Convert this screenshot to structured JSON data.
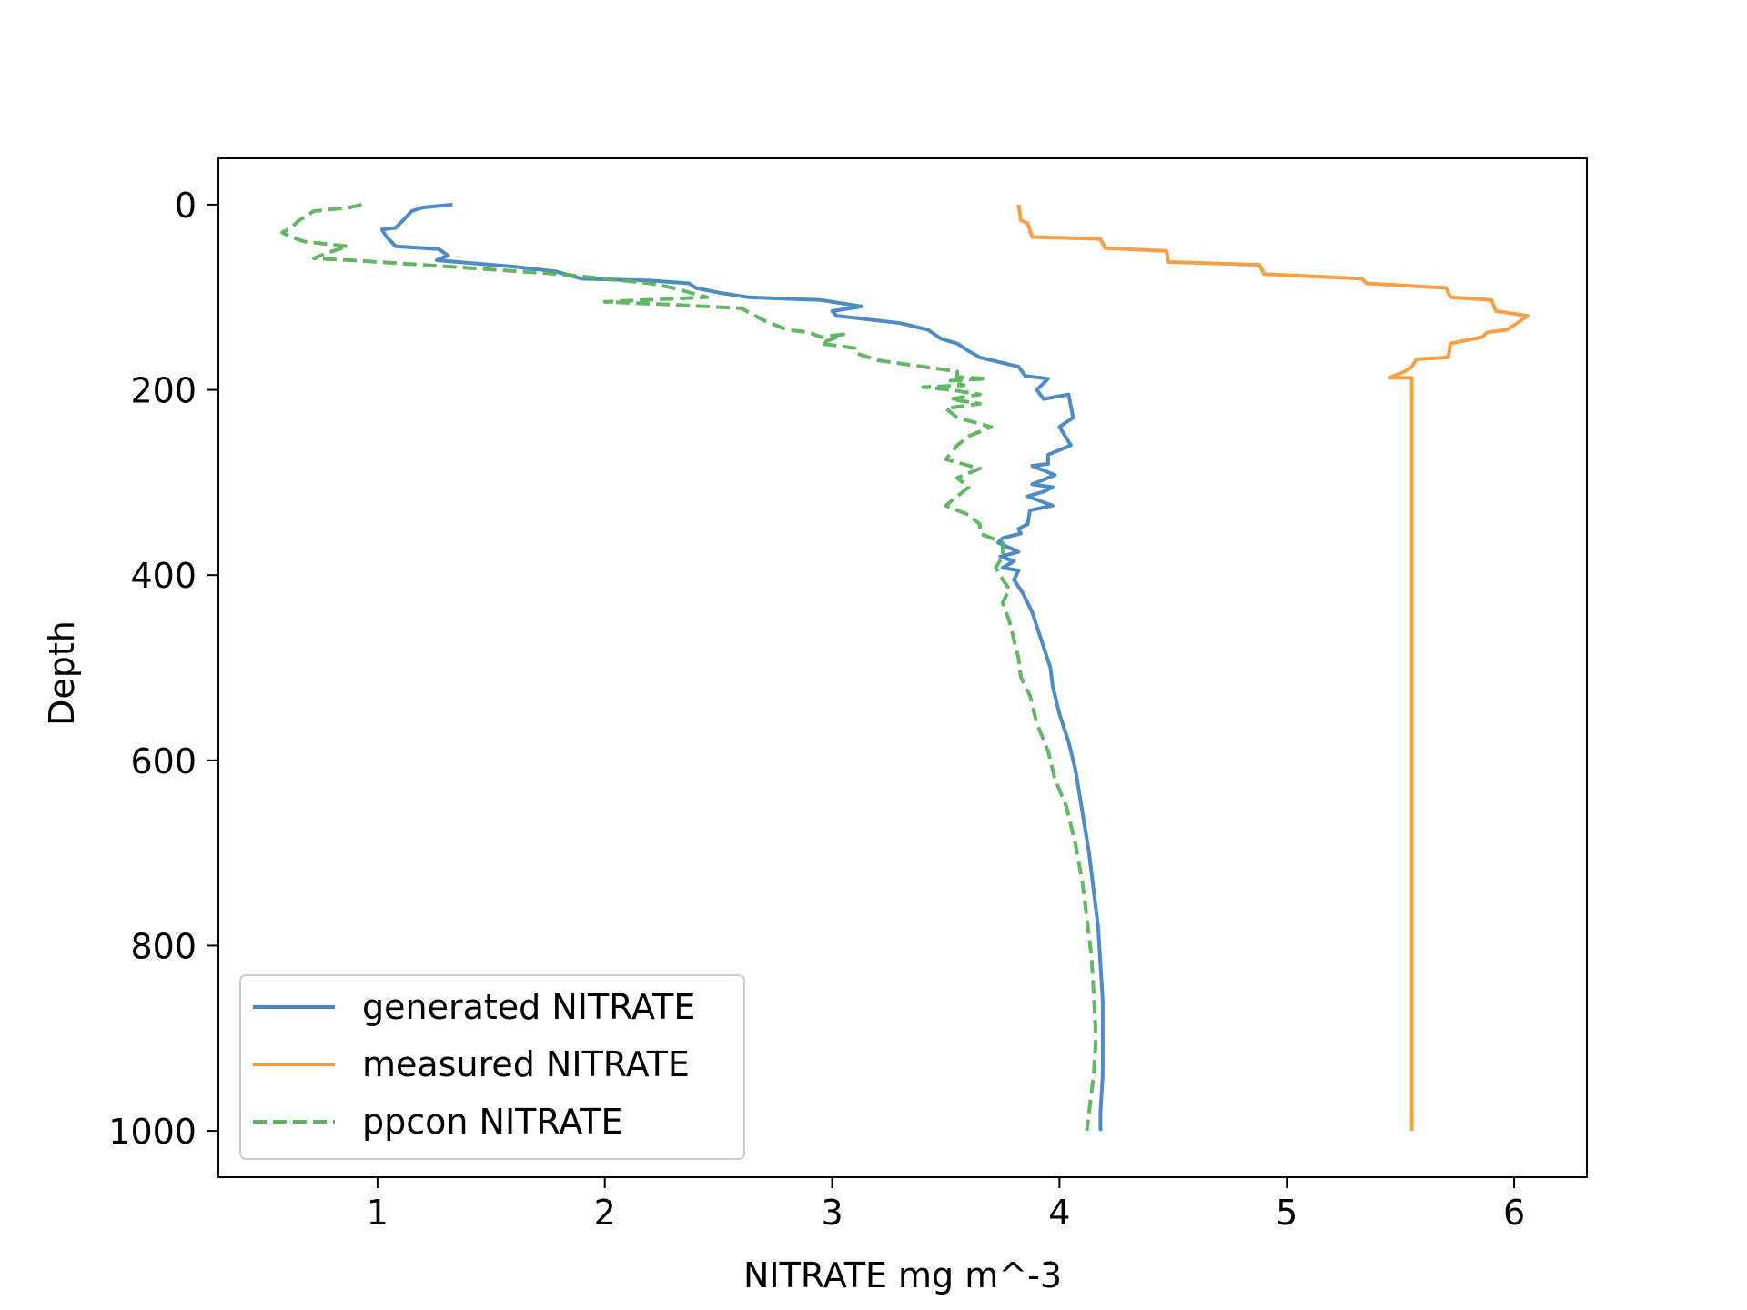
{
  "chart_data": {
    "type": "line",
    "title": "",
    "xlabel": "NITRATE mg m^-3",
    "ylabel": "Depth",
    "xlim": [
      0.3,
      6.32
    ],
    "ylim": [
      1050,
      -50
    ],
    "y_inverted": true,
    "x_ticks": [
      1,
      2,
      3,
      4,
      5,
      6
    ],
    "y_ticks": [
      0,
      200,
      400,
      600,
      800,
      1000
    ],
    "legend_position": "lower-left",
    "series": [
      {
        "name": "generated NITRATE",
        "color": "#4385c3",
        "style": "solid",
        "points": [
          [
            1.33,
            0
          ],
          [
            1.2,
            3
          ],
          [
            1.15,
            7
          ],
          [
            1.12,
            15
          ],
          [
            1.08,
            25
          ],
          [
            1.02,
            27
          ],
          [
            1.04,
            35
          ],
          [
            1.08,
            45
          ],
          [
            1.27,
            48
          ],
          [
            1.31,
            55
          ],
          [
            1.26,
            60
          ],
          [
            1.6,
            67
          ],
          [
            1.78,
            72
          ],
          [
            1.9,
            80
          ],
          [
            2.2,
            82
          ],
          [
            2.37,
            85
          ],
          [
            2.4,
            90
          ],
          [
            2.5,
            95
          ],
          [
            2.63,
            100
          ],
          [
            2.95,
            103
          ],
          [
            3.13,
            110
          ],
          [
            3.0,
            115
          ],
          [
            3.02,
            120
          ],
          [
            3.3,
            128
          ],
          [
            3.42,
            135
          ],
          [
            3.48,
            145
          ],
          [
            3.55,
            150
          ],
          [
            3.6,
            158
          ],
          [
            3.65,
            165
          ],
          [
            3.82,
            175
          ],
          [
            3.85,
            185
          ],
          [
            3.95,
            188
          ],
          [
            3.9,
            200
          ],
          [
            3.93,
            210
          ],
          [
            4.04,
            205
          ],
          [
            4.06,
            230
          ],
          [
            4.0,
            240
          ],
          [
            4.05,
            260
          ],
          [
            3.95,
            270
          ],
          [
            3.95,
            280
          ],
          [
            3.88,
            282
          ],
          [
            3.98,
            292
          ],
          [
            3.88,
            302
          ],
          [
            3.97,
            305
          ],
          [
            3.93,
            310
          ],
          [
            3.86,
            315
          ],
          [
            3.97,
            325
          ],
          [
            3.87,
            330
          ],
          [
            3.86,
            345
          ],
          [
            3.82,
            350
          ],
          [
            3.83,
            355
          ],
          [
            3.75,
            360
          ],
          [
            3.73,
            365
          ],
          [
            3.82,
            375
          ],
          [
            3.74,
            380
          ],
          [
            3.8,
            385
          ],
          [
            3.75,
            392
          ],
          [
            3.82,
            395
          ],
          [
            3.8,
            405
          ],
          [
            3.84,
            420
          ],
          [
            3.88,
            440
          ],
          [
            3.92,
            470
          ],
          [
            3.96,
            500
          ],
          [
            3.97,
            520
          ],
          [
            4.0,
            550
          ],
          [
            4.04,
            580
          ],
          [
            4.07,
            610
          ],
          [
            4.09,
            640
          ],
          [
            4.11,
            670
          ],
          [
            4.13,
            700
          ],
          [
            4.15,
            740
          ],
          [
            4.17,
            780
          ],
          [
            4.18,
            820
          ],
          [
            4.19,
            860
          ],
          [
            4.19,
            900
          ],
          [
            4.19,
            940
          ],
          [
            4.18,
            980
          ],
          [
            4.18,
            1000
          ]
        ]
      },
      {
        "name": "measured NITRATE",
        "color": "#f89a3c",
        "style": "solid",
        "points": [
          [
            3.82,
            0
          ],
          [
            3.83,
            17
          ],
          [
            3.86,
            20
          ],
          [
            3.88,
            35
          ],
          [
            4.18,
            37
          ],
          [
            4.2,
            47
          ],
          [
            4.47,
            50
          ],
          [
            4.48,
            62
          ],
          [
            4.88,
            65
          ],
          [
            4.9,
            75
          ],
          [
            5.33,
            80
          ],
          [
            5.35,
            85
          ],
          [
            5.7,
            90
          ],
          [
            5.72,
            100
          ],
          [
            5.9,
            103
          ],
          [
            5.92,
            115
          ],
          [
            6.06,
            120
          ],
          [
            5.97,
            135
          ],
          [
            5.88,
            138
          ],
          [
            5.86,
            143
          ],
          [
            5.72,
            150
          ],
          [
            5.71,
            165
          ],
          [
            5.57,
            167
          ],
          [
            5.55,
            175
          ],
          [
            5.52,
            180
          ],
          [
            5.45,
            187
          ],
          [
            5.55,
            187
          ],
          [
            5.55,
            1000
          ]
        ]
      },
      {
        "name": "ppcon NITRATE",
        "color": "#57b45a",
        "style": "dashed",
        "points": [
          [
            0.93,
            0
          ],
          [
            0.88,
            3
          ],
          [
            0.72,
            7
          ],
          [
            0.65,
            18
          ],
          [
            0.62,
            25
          ],
          [
            0.58,
            30
          ],
          [
            0.62,
            35
          ],
          [
            0.68,
            40
          ],
          [
            0.87,
            45
          ],
          [
            0.78,
            52
          ],
          [
            0.72,
            58
          ],
          [
            0.88,
            60
          ],
          [
            1.2,
            65
          ],
          [
            1.5,
            70
          ],
          [
            1.8,
            75
          ],
          [
            2.0,
            80
          ],
          [
            2.2,
            85
          ],
          [
            2.3,
            90
          ],
          [
            2.45,
            100
          ],
          [
            2.0,
            105
          ],
          [
            2.3,
            108
          ],
          [
            2.6,
            112
          ],
          [
            2.7,
            125
          ],
          [
            2.75,
            130
          ],
          [
            2.8,
            135
          ],
          [
            2.9,
            138
          ],
          [
            2.95,
            143
          ],
          [
            3.05,
            140
          ],
          [
            2.95,
            150
          ],
          [
            3.1,
            155
          ],
          [
            3.1,
            160
          ],
          [
            3.2,
            168
          ],
          [
            3.4,
            175
          ],
          [
            3.55,
            180
          ],
          [
            3.55,
            186
          ],
          [
            3.68,
            188
          ],
          [
            3.52,
            190
          ],
          [
            3.58,
            195
          ],
          [
            3.4,
            197
          ],
          [
            3.52,
            200
          ],
          [
            3.65,
            205
          ],
          [
            3.52,
            210
          ],
          [
            3.65,
            215
          ],
          [
            3.5,
            220
          ],
          [
            3.55,
            230
          ],
          [
            3.7,
            240
          ],
          [
            3.6,
            250
          ],
          [
            3.55,
            260
          ],
          [
            3.5,
            275
          ],
          [
            3.65,
            285
          ],
          [
            3.55,
            295
          ],
          [
            3.6,
            305
          ],
          [
            3.55,
            315
          ],
          [
            3.5,
            325
          ],
          [
            3.6,
            335
          ],
          [
            3.65,
            345
          ],
          [
            3.65,
            355
          ],
          [
            3.75,
            365
          ],
          [
            3.75,
            380
          ],
          [
            3.72,
            392
          ],
          [
            3.75,
            405
          ],
          [
            3.78,
            415
          ],
          [
            3.75,
            430
          ],
          [
            3.78,
            450
          ],
          [
            3.8,
            470
          ],
          [
            3.82,
            490
          ],
          [
            3.83,
            510
          ],
          [
            3.87,
            530
          ],
          [
            3.9,
            560
          ],
          [
            3.95,
            590
          ],
          [
            3.98,
            620
          ],
          [
            4.03,
            650
          ],
          [
            4.07,
            690
          ],
          [
            4.1,
            730
          ],
          [
            4.12,
            770
          ],
          [
            4.14,
            810
          ],
          [
            4.15,
            850
          ],
          [
            4.16,
            900
          ],
          [
            4.15,
            940
          ],
          [
            4.13,
            980
          ],
          [
            4.12,
            1000
          ]
        ]
      }
    ]
  }
}
